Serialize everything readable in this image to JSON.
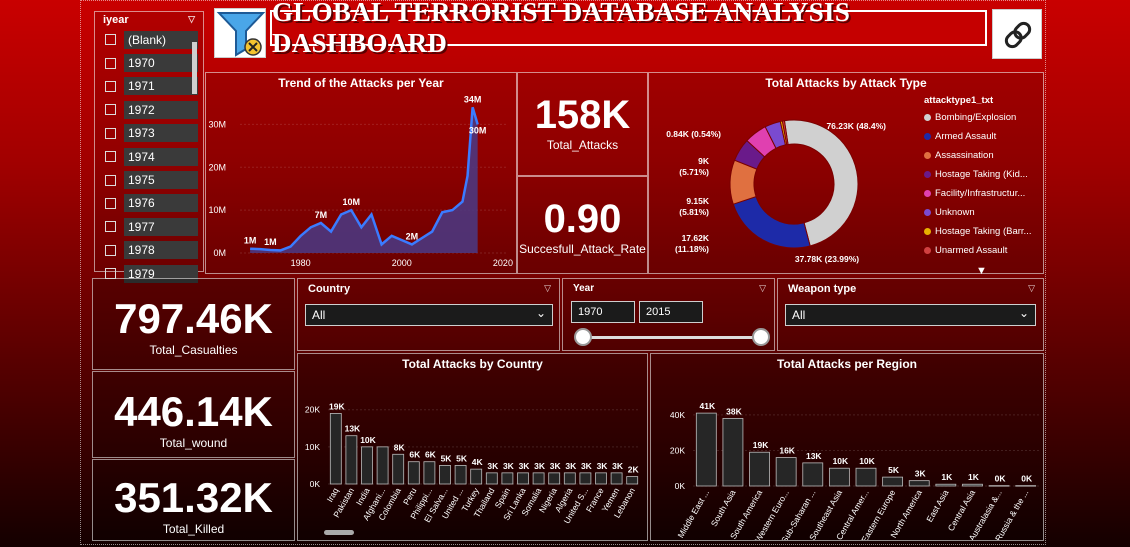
{
  "dashboard": {
    "title": "GLOBAL TERRORIST DATABASE ANALYSIS DASHBOARD"
  },
  "year_slicer": {
    "title": "iyear",
    "items": [
      "(Blank)",
      "1970",
      "1971",
      "1972",
      "1973",
      "1974",
      "1975",
      "1976",
      "1977",
      "1978",
      "1979"
    ]
  },
  "kpis": {
    "total_attacks": {
      "value": "158K",
      "label": "Total_Attacks"
    },
    "success_rate": {
      "value": "0.90",
      "label": "Succesfull_Attack_Rate"
    },
    "total_casualties": {
      "value": "797.46K",
      "label": "Total_Casualties"
    },
    "total_wound": {
      "value": "446.14K",
      "label": "Total_wound"
    },
    "total_killed": {
      "value": "351.32K",
      "label": "Total_Killed"
    }
  },
  "filters": {
    "country": {
      "label": "Country",
      "value": "All"
    },
    "year": {
      "label": "Year",
      "from": "1970",
      "to": "2015",
      "slider_min_fraction": 0,
      "slider_max_fraction": 1
    },
    "weapon": {
      "label": "Weapon type",
      "value": "All"
    }
  },
  "colors": {
    "accent_line": "#3b7bff",
    "bar_fill": "#262626",
    "area_fill": "#4a3a86"
  },
  "chart_data": [
    {
      "id": "trend",
      "type": "area",
      "title": "Trend of the Attacks per Year",
      "x": [
        1970,
        1972,
        1974,
        1976,
        1978,
        1980,
        1982,
        1984,
        1986,
        1988,
        1990,
        1992,
        1994,
        1996,
        1998,
        2000,
        2002,
        2004,
        2006,
        2008,
        2010,
        2012,
        2013,
        2014,
        2015
      ],
      "y": [
        1,
        0.9,
        0.7,
        0.6,
        1.5,
        4,
        6,
        7,
        5,
        9,
        10,
        6,
        9,
        2,
        4,
        3,
        2,
        3.5,
        5,
        9.5,
        10,
        12,
        18,
        34,
        30
      ],
      "ylim": [
        0,
        35
      ],
      "yticks": [
        "0M",
        "10M",
        "20M",
        "30M"
      ],
      "yticks_values": [
        0,
        10,
        20,
        30
      ],
      "xticks": [
        "1980",
        "2000",
        "2020"
      ],
      "xticks_values": [
        1980,
        2000,
        2020
      ],
      "xlim": [
        1968,
        2021
      ],
      "data_labels": [
        {
          "x": 1970,
          "y": 1,
          "text": "1M"
        },
        {
          "x": 1974,
          "y": 0.7,
          "text": "1M"
        },
        {
          "x": 1984,
          "y": 7,
          "text": "7M"
        },
        {
          "x": 1990,
          "y": 10,
          "text": "10M"
        },
        {
          "x": 2002,
          "y": 2,
          "text": "2M"
        },
        {
          "x": 2014,
          "y": 34,
          "text": "34M"
        },
        {
          "x": 2015,
          "y": 30,
          "text": "30M"
        }
      ]
    },
    {
      "id": "attack_type",
      "type": "pie",
      "title": "Total Attacks by Attack Type",
      "legend_title": "attacktype1_txt",
      "labels": [
        "Bombing/Explosion",
        "Armed Assault",
        "Assassination",
        "Hostage Taking (Kid...",
        "Facility/Infrastructur...",
        "Unknown",
        "Hostage Taking (Barr...",
        "Unarmed Assault"
      ],
      "values": [
        76.23,
        37.78,
        17.62,
        9.15,
        9.0,
        6.3,
        0.84,
        0.8
      ],
      "colors": [
        "#d0d0d0",
        "#1d2aa8",
        "#e07040",
        "#6a1a8a",
        "#e040b0",
        "#7a4ad0",
        "#e8b000",
        "#d04040"
      ],
      "data_labels": [
        "76.23K (48.4%)",
        "37.78K (23.99%)",
        "17.62K\n(11.18%)",
        "9.15K\n(5.81%)",
        "9K\n(5.71%)",
        "",
        "0.84K (0.54%)",
        ""
      ]
    },
    {
      "id": "country",
      "type": "bar",
      "title": "Total Attacks by Country",
      "categories": [
        "Iraq",
        "Pakistan",
        "India",
        "Afghani...",
        "Colombia",
        "Peru",
        "Philippi...",
        "El Salva...",
        "United ...",
        "Turkey",
        "Thailand",
        "Spain",
        "Sri Lanka",
        "Somalia",
        "Nigeria",
        "Algeria",
        "United S...",
        "France",
        "Yemen",
        "Lebanon"
      ],
      "values": [
        19,
        13,
        10,
        10,
        8,
        6,
        6,
        5,
        5,
        4,
        3,
        3,
        3,
        3,
        3,
        3,
        3,
        3,
        3,
        2
      ],
      "data_labels": [
        "19K",
        "13K",
        "10K",
        "",
        "8K",
        "6K",
        "6K",
        "5K",
        "5K",
        "4K",
        "3K",
        "3K",
        "3K",
        "3K",
        "3K",
        "3K",
        "3K",
        "3K",
        "3K",
        "2K"
      ],
      "ylim": [
        0,
        21
      ],
      "yticks": [
        "0K",
        "10K",
        "20K"
      ],
      "yticks_values": [
        0,
        10,
        20
      ]
    },
    {
      "id": "region",
      "type": "bar",
      "title": "Total Attacks per Region",
      "categories": [
        "Middle East ...",
        "South Asia",
        "South America",
        "Western Euro...",
        "Sub-Saharan ...",
        "Southeast Asia",
        "Central Amer...",
        "Eastern Europe",
        "North America",
        "East Asia",
        "Central Asia",
        "Australasia &...",
        "Russia & the ..."
      ],
      "values": [
        41,
        38,
        19,
        16,
        13,
        10,
        10,
        5,
        3,
        1,
        1,
        0.2,
        0.2
      ],
      "data_labels": [
        "41K",
        "38K",
        "19K",
        "16K",
        "13K",
        "10K",
        "10K",
        "5K",
        "3K",
        "1K",
        "1K",
        "0K",
        "0K"
      ],
      "ylim": [
        0,
        45
      ],
      "yticks": [
        "0K",
        "20K",
        "40K"
      ],
      "yticks_values": [
        0,
        20,
        40
      ]
    }
  ]
}
